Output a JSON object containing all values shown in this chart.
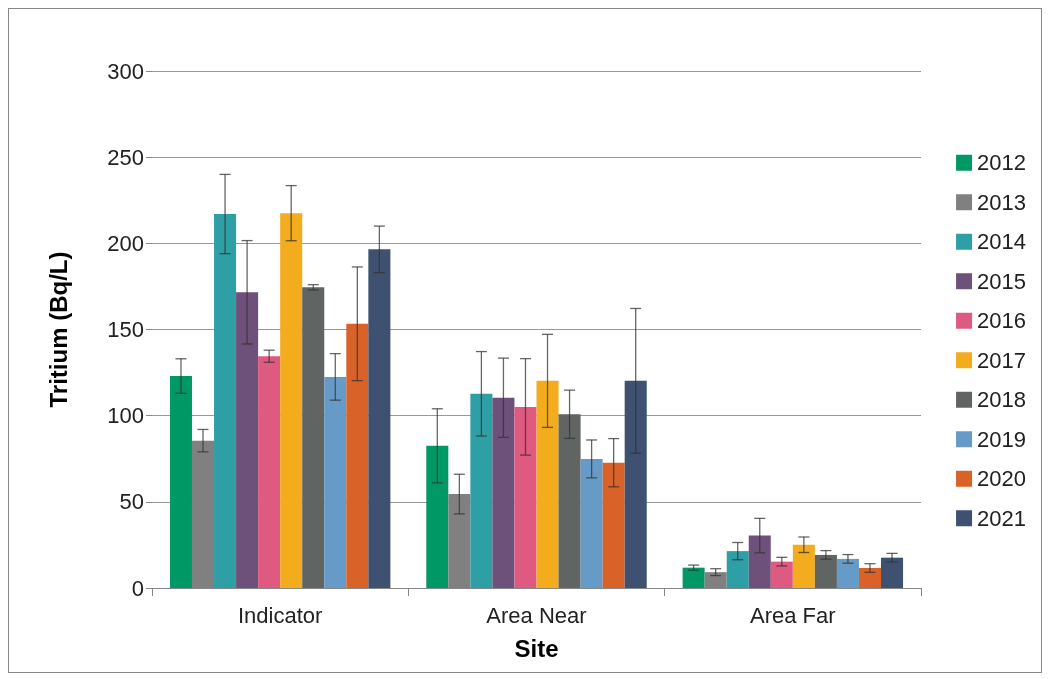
{
  "chart_data": {
    "type": "bar",
    "xlabel": "Site",
    "ylabel": "Tritium (Bq/L)",
    "categories": [
      "Indicator",
      "Area Near",
      "Area Far"
    ],
    "ylim": [
      0,
      300
    ],
    "yticks": [
      0,
      50,
      100,
      150,
      200,
      250,
      300
    ],
    "grid": "y",
    "legend": "right",
    "series": [
      {
        "name": "2012",
        "color": "#009966",
        "values": [
          123,
          82.5,
          11.8
        ],
        "errors": [
          10,
          21.5,
          1.5
        ]
      },
      {
        "name": "2013",
        "color": "#808080",
        "values": [
          85.5,
          54.5,
          9.2
        ],
        "errors": [
          6.5,
          11.5,
          2
        ]
      },
      {
        "name": "2014",
        "color": "#2e9fa5",
        "values": [
          217,
          112.7,
          21.4
        ],
        "errors": [
          23,
          24.5,
          5
        ]
      },
      {
        "name": "2015",
        "color": "#6e517b",
        "values": [
          171.6,
          110.4,
          30.4
        ],
        "errors": [
          30,
          23,
          10
        ]
      },
      {
        "name": "2016",
        "color": "#df5a80",
        "values": [
          134.5,
          105.1,
          15.3
        ],
        "errors": [
          3.5,
          28,
          2.5
        ]
      },
      {
        "name": "2017",
        "color": "#f2ac1e",
        "values": [
          217.5,
          120.2,
          25.1
        ],
        "errors": [
          16,
          27,
          4.5
        ]
      },
      {
        "name": "2018",
        "color": "#606563",
        "values": [
          174.5,
          100.8,
          19.2
        ],
        "errors": [
          1.5,
          14,
          2.5
        ]
      },
      {
        "name": "2019",
        "color": "#679bc7",
        "values": [
          122.5,
          74.9,
          16.9
        ],
        "errors": [
          13.5,
          11,
          2.5
        ]
      },
      {
        "name": "2020",
        "color": "#d96229",
        "values": [
          153.3,
          72.7,
          11.6
        ],
        "errors": [
          33,
          14,
          2.5
        ]
      },
      {
        "name": "2021",
        "color": "#3e5170",
        "values": [
          196.5,
          120.2,
          17.6
        ],
        "errors": [
          13.5,
          42,
          2.5
        ]
      }
    ]
  }
}
